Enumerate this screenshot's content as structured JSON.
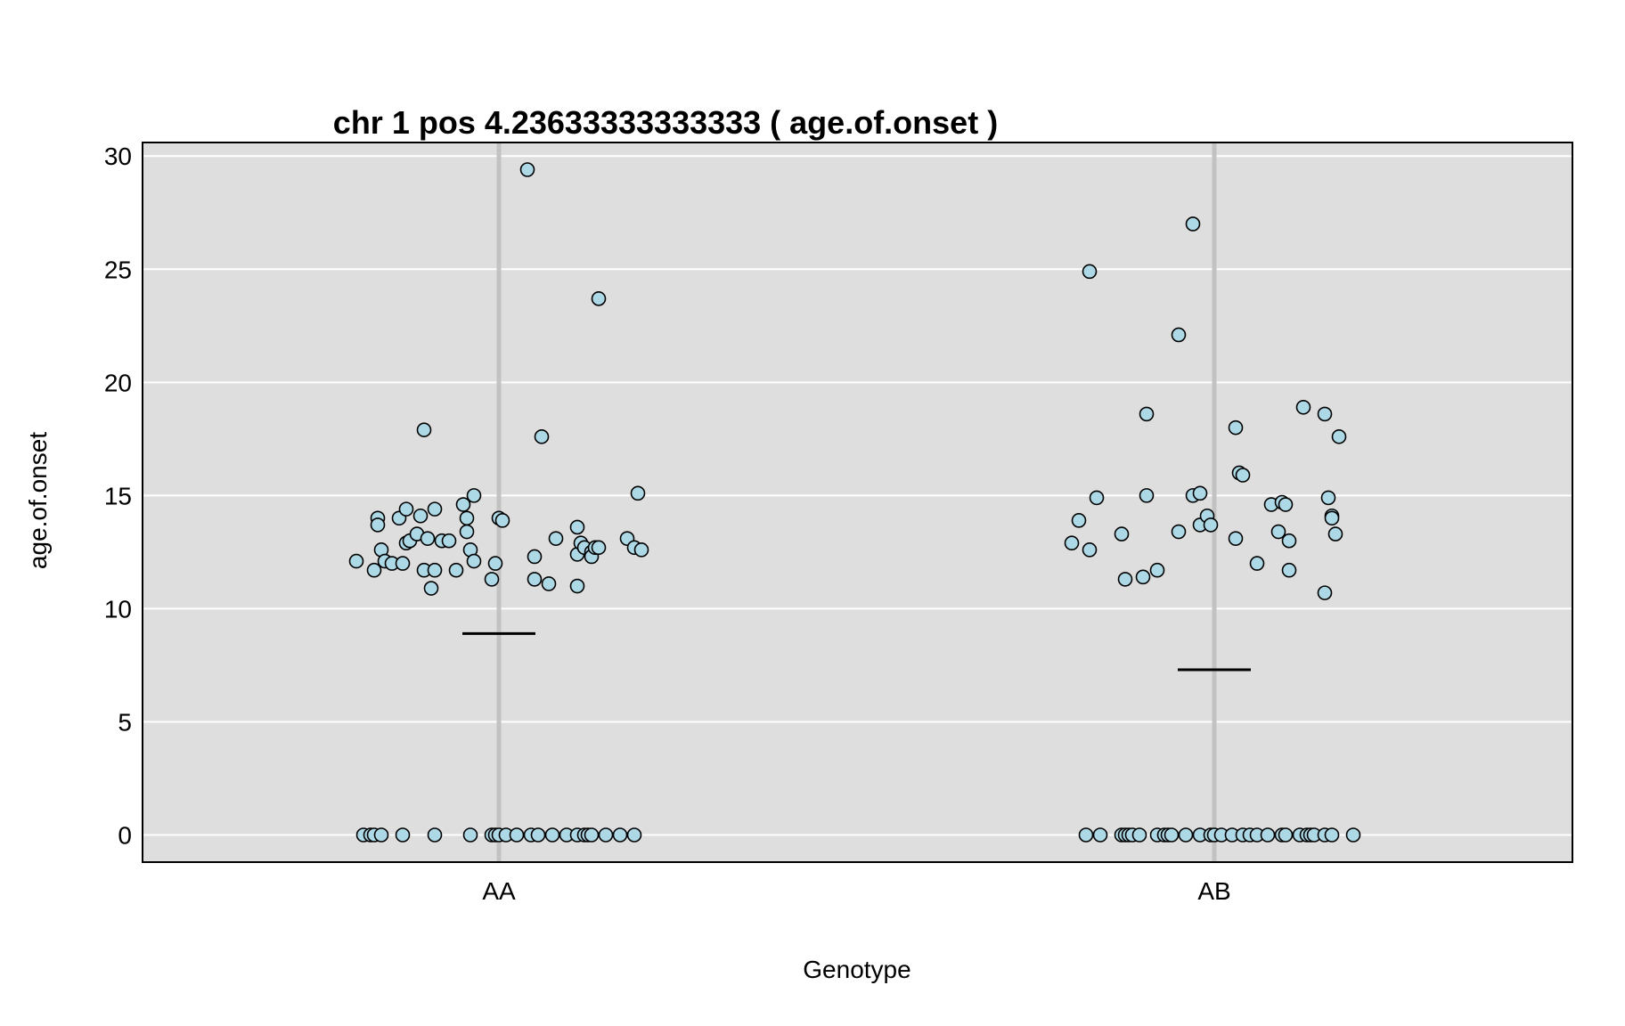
{
  "chart_data": {
    "type": "scatter",
    "title": "chr 1 pos 4.23633333333333 ( age.of.onset )",
    "xlabel": "Genotype",
    "ylabel": "age.of.onset",
    "categories": [
      "AA",
      "AB"
    ],
    "ylim": [
      -1.2,
      30.6
    ],
    "yticks": [
      0,
      5,
      10,
      15,
      20,
      25,
      30
    ],
    "grid": true,
    "background_color": "#dedede",
    "point_color": "#add8e6",
    "series": [
      {
        "category": "AA",
        "mean": 8.9,
        "points": [
          {
            "x": -0.2,
            "y": 12.1
          },
          {
            "x": -0.175,
            "y": 11.7
          },
          {
            "x": -0.17,
            "y": 14.0
          },
          {
            "x": -0.17,
            "y": 13.7
          },
          {
            "x": -0.165,
            "y": 12.6
          },
          {
            "x": -0.16,
            "y": 12.1
          },
          {
            "x": -0.15,
            "y": 12.0
          },
          {
            "x": -0.14,
            "y": 14.0
          },
          {
            "x": -0.135,
            "y": 12.0
          },
          {
            "x": -0.13,
            "y": 12.9
          },
          {
            "x": -0.13,
            "y": 14.4
          },
          {
            "x": -0.125,
            "y": 13.0
          },
          {
            "x": -0.115,
            "y": 13.3
          },
          {
            "x": -0.11,
            "y": 14.1
          },
          {
            "x": -0.105,
            "y": 11.7
          },
          {
            "x": -0.105,
            "y": 17.9
          },
          {
            "x": -0.1,
            "y": 13.1
          },
          {
            "x": -0.095,
            "y": 10.9
          },
          {
            "x": -0.09,
            "y": 14.4
          },
          {
            "x": -0.09,
            "y": 11.7
          },
          {
            "x": -0.08,
            "y": 13.0
          },
          {
            "x": -0.07,
            "y": 13.0
          },
          {
            "x": -0.06,
            "y": 11.7
          },
          {
            "x": -0.05,
            "y": 14.6
          },
          {
            "x": -0.045,
            "y": 14.0
          },
          {
            "x": -0.045,
            "y": 13.4
          },
          {
            "x": -0.04,
            "y": 12.6
          },
          {
            "x": -0.035,
            "y": 15.0
          },
          {
            "x": -0.035,
            "y": 12.1
          },
          {
            "x": -0.01,
            "y": 11.3
          },
          {
            "x": -0.005,
            "y": 12.0
          },
          {
            "x": 0.0,
            "y": 14.0
          },
          {
            "x": 0.005,
            "y": 13.9
          },
          {
            "x": 0.04,
            "y": 29.4
          },
          {
            "x": 0.05,
            "y": 12.3
          },
          {
            "x": 0.05,
            "y": 11.3
          },
          {
            "x": 0.06,
            "y": 17.6
          },
          {
            "x": 0.07,
            "y": 11.1
          },
          {
            "x": 0.08,
            "y": 13.1
          },
          {
            "x": 0.11,
            "y": 13.6
          },
          {
            "x": 0.11,
            "y": 12.4
          },
          {
            "x": 0.11,
            "y": 11.0
          },
          {
            "x": 0.115,
            "y": 12.9
          },
          {
            "x": 0.12,
            "y": 12.7
          },
          {
            "x": 0.13,
            "y": 12.5
          },
          {
            "x": 0.13,
            "y": 12.3
          },
          {
            "x": 0.135,
            "y": 12.7
          },
          {
            "x": 0.14,
            "y": 23.7
          },
          {
            "x": 0.14,
            "y": 12.7
          },
          {
            "x": 0.18,
            "y": 13.1
          },
          {
            "x": 0.19,
            "y": 12.7
          },
          {
            "x": 0.195,
            "y": 15.1
          },
          {
            "x": 0.2,
            "y": 12.6
          },
          {
            "x": -0.19,
            "y": 0
          },
          {
            "x": -0.18,
            "y": 0
          },
          {
            "x": -0.175,
            "y": 0
          },
          {
            "x": -0.165,
            "y": 0
          },
          {
            "x": -0.135,
            "y": 0
          },
          {
            "x": -0.09,
            "y": 0
          },
          {
            "x": -0.04,
            "y": 0
          },
          {
            "x": -0.01,
            "y": 0
          },
          {
            "x": -0.005,
            "y": 0
          },
          {
            "x": 0.0,
            "y": 0
          },
          {
            "x": 0.01,
            "y": 0
          },
          {
            "x": 0.025,
            "y": 0
          },
          {
            "x": 0.045,
            "y": 0
          },
          {
            "x": 0.055,
            "y": 0
          },
          {
            "x": 0.075,
            "y": 0
          },
          {
            "x": 0.095,
            "y": 0
          },
          {
            "x": 0.11,
            "y": 0
          },
          {
            "x": 0.12,
            "y": 0
          },
          {
            "x": 0.125,
            "y": 0
          },
          {
            "x": 0.13,
            "y": 0
          },
          {
            "x": 0.15,
            "y": 0
          },
          {
            "x": 0.17,
            "y": 0
          },
          {
            "x": 0.19,
            "y": 0
          }
        ]
      },
      {
        "category": "AB",
        "mean": 7.3,
        "points": [
          {
            "x": -0.2,
            "y": 12.9
          },
          {
            "x": -0.19,
            "y": 13.9
          },
          {
            "x": -0.175,
            "y": 24.9
          },
          {
            "x": -0.175,
            "y": 12.6
          },
          {
            "x": -0.165,
            "y": 14.9
          },
          {
            "x": -0.13,
            "y": 13.3
          },
          {
            "x": -0.125,
            "y": 11.3
          },
          {
            "x": -0.1,
            "y": 11.4
          },
          {
            "x": -0.095,
            "y": 18.6
          },
          {
            "x": -0.095,
            "y": 15.0
          },
          {
            "x": -0.08,
            "y": 11.7
          },
          {
            "x": -0.05,
            "y": 22.1
          },
          {
            "x": -0.05,
            "y": 13.4
          },
          {
            "x": -0.03,
            "y": 27.0
          },
          {
            "x": -0.03,
            "y": 15.0
          },
          {
            "x": -0.02,
            "y": 13.7
          },
          {
            "x": -0.02,
            "y": 15.1
          },
          {
            "x": -0.01,
            "y": 14.1
          },
          {
            "x": -0.005,
            "y": 13.7
          },
          {
            "x": 0.03,
            "y": 18.0
          },
          {
            "x": 0.03,
            "y": 13.1
          },
          {
            "x": 0.035,
            "y": 16.0
          },
          {
            "x": 0.04,
            "y": 15.9
          },
          {
            "x": 0.06,
            "y": 12.0
          },
          {
            "x": 0.08,
            "y": 14.6
          },
          {
            "x": 0.09,
            "y": 13.4
          },
          {
            "x": 0.095,
            "y": 14.7
          },
          {
            "x": 0.1,
            "y": 14.6
          },
          {
            "x": 0.105,
            "y": 13.0
          },
          {
            "x": 0.105,
            "y": 11.7
          },
          {
            "x": 0.125,
            "y": 18.9
          },
          {
            "x": 0.155,
            "y": 18.6
          },
          {
            "x": 0.155,
            "y": 10.7
          },
          {
            "x": 0.16,
            "y": 14.9
          },
          {
            "x": 0.165,
            "y": 14.1
          },
          {
            "x": 0.165,
            "y": 14.0
          },
          {
            "x": 0.17,
            "y": 13.3
          },
          {
            "x": 0.175,
            "y": 17.6
          },
          {
            "x": -0.18,
            "y": 0
          },
          {
            "x": -0.16,
            "y": 0
          },
          {
            "x": -0.13,
            "y": 0
          },
          {
            "x": -0.125,
            "y": 0
          },
          {
            "x": -0.12,
            "y": 0
          },
          {
            "x": -0.115,
            "y": 0
          },
          {
            "x": -0.105,
            "y": 0
          },
          {
            "x": -0.08,
            "y": 0
          },
          {
            "x": -0.07,
            "y": 0
          },
          {
            "x": -0.065,
            "y": 0
          },
          {
            "x": -0.06,
            "y": 0
          },
          {
            "x": -0.04,
            "y": 0
          },
          {
            "x": -0.02,
            "y": 0
          },
          {
            "x": -0.005,
            "y": 0
          },
          {
            "x": 0.0,
            "y": 0
          },
          {
            "x": 0.01,
            "y": 0
          },
          {
            "x": 0.025,
            "y": 0
          },
          {
            "x": 0.04,
            "y": 0
          },
          {
            "x": 0.05,
            "y": 0
          },
          {
            "x": 0.06,
            "y": 0
          },
          {
            "x": 0.075,
            "y": 0
          },
          {
            "x": 0.095,
            "y": 0
          },
          {
            "x": 0.1,
            "y": 0
          },
          {
            "x": 0.12,
            "y": 0
          },
          {
            "x": 0.13,
            "y": 0
          },
          {
            "x": 0.135,
            "y": 0
          },
          {
            "x": 0.14,
            "y": 0
          },
          {
            "x": 0.155,
            "y": 0
          },
          {
            "x": 0.165,
            "y": 0
          },
          {
            "x": 0.195,
            "y": 0
          }
        ]
      }
    ]
  }
}
